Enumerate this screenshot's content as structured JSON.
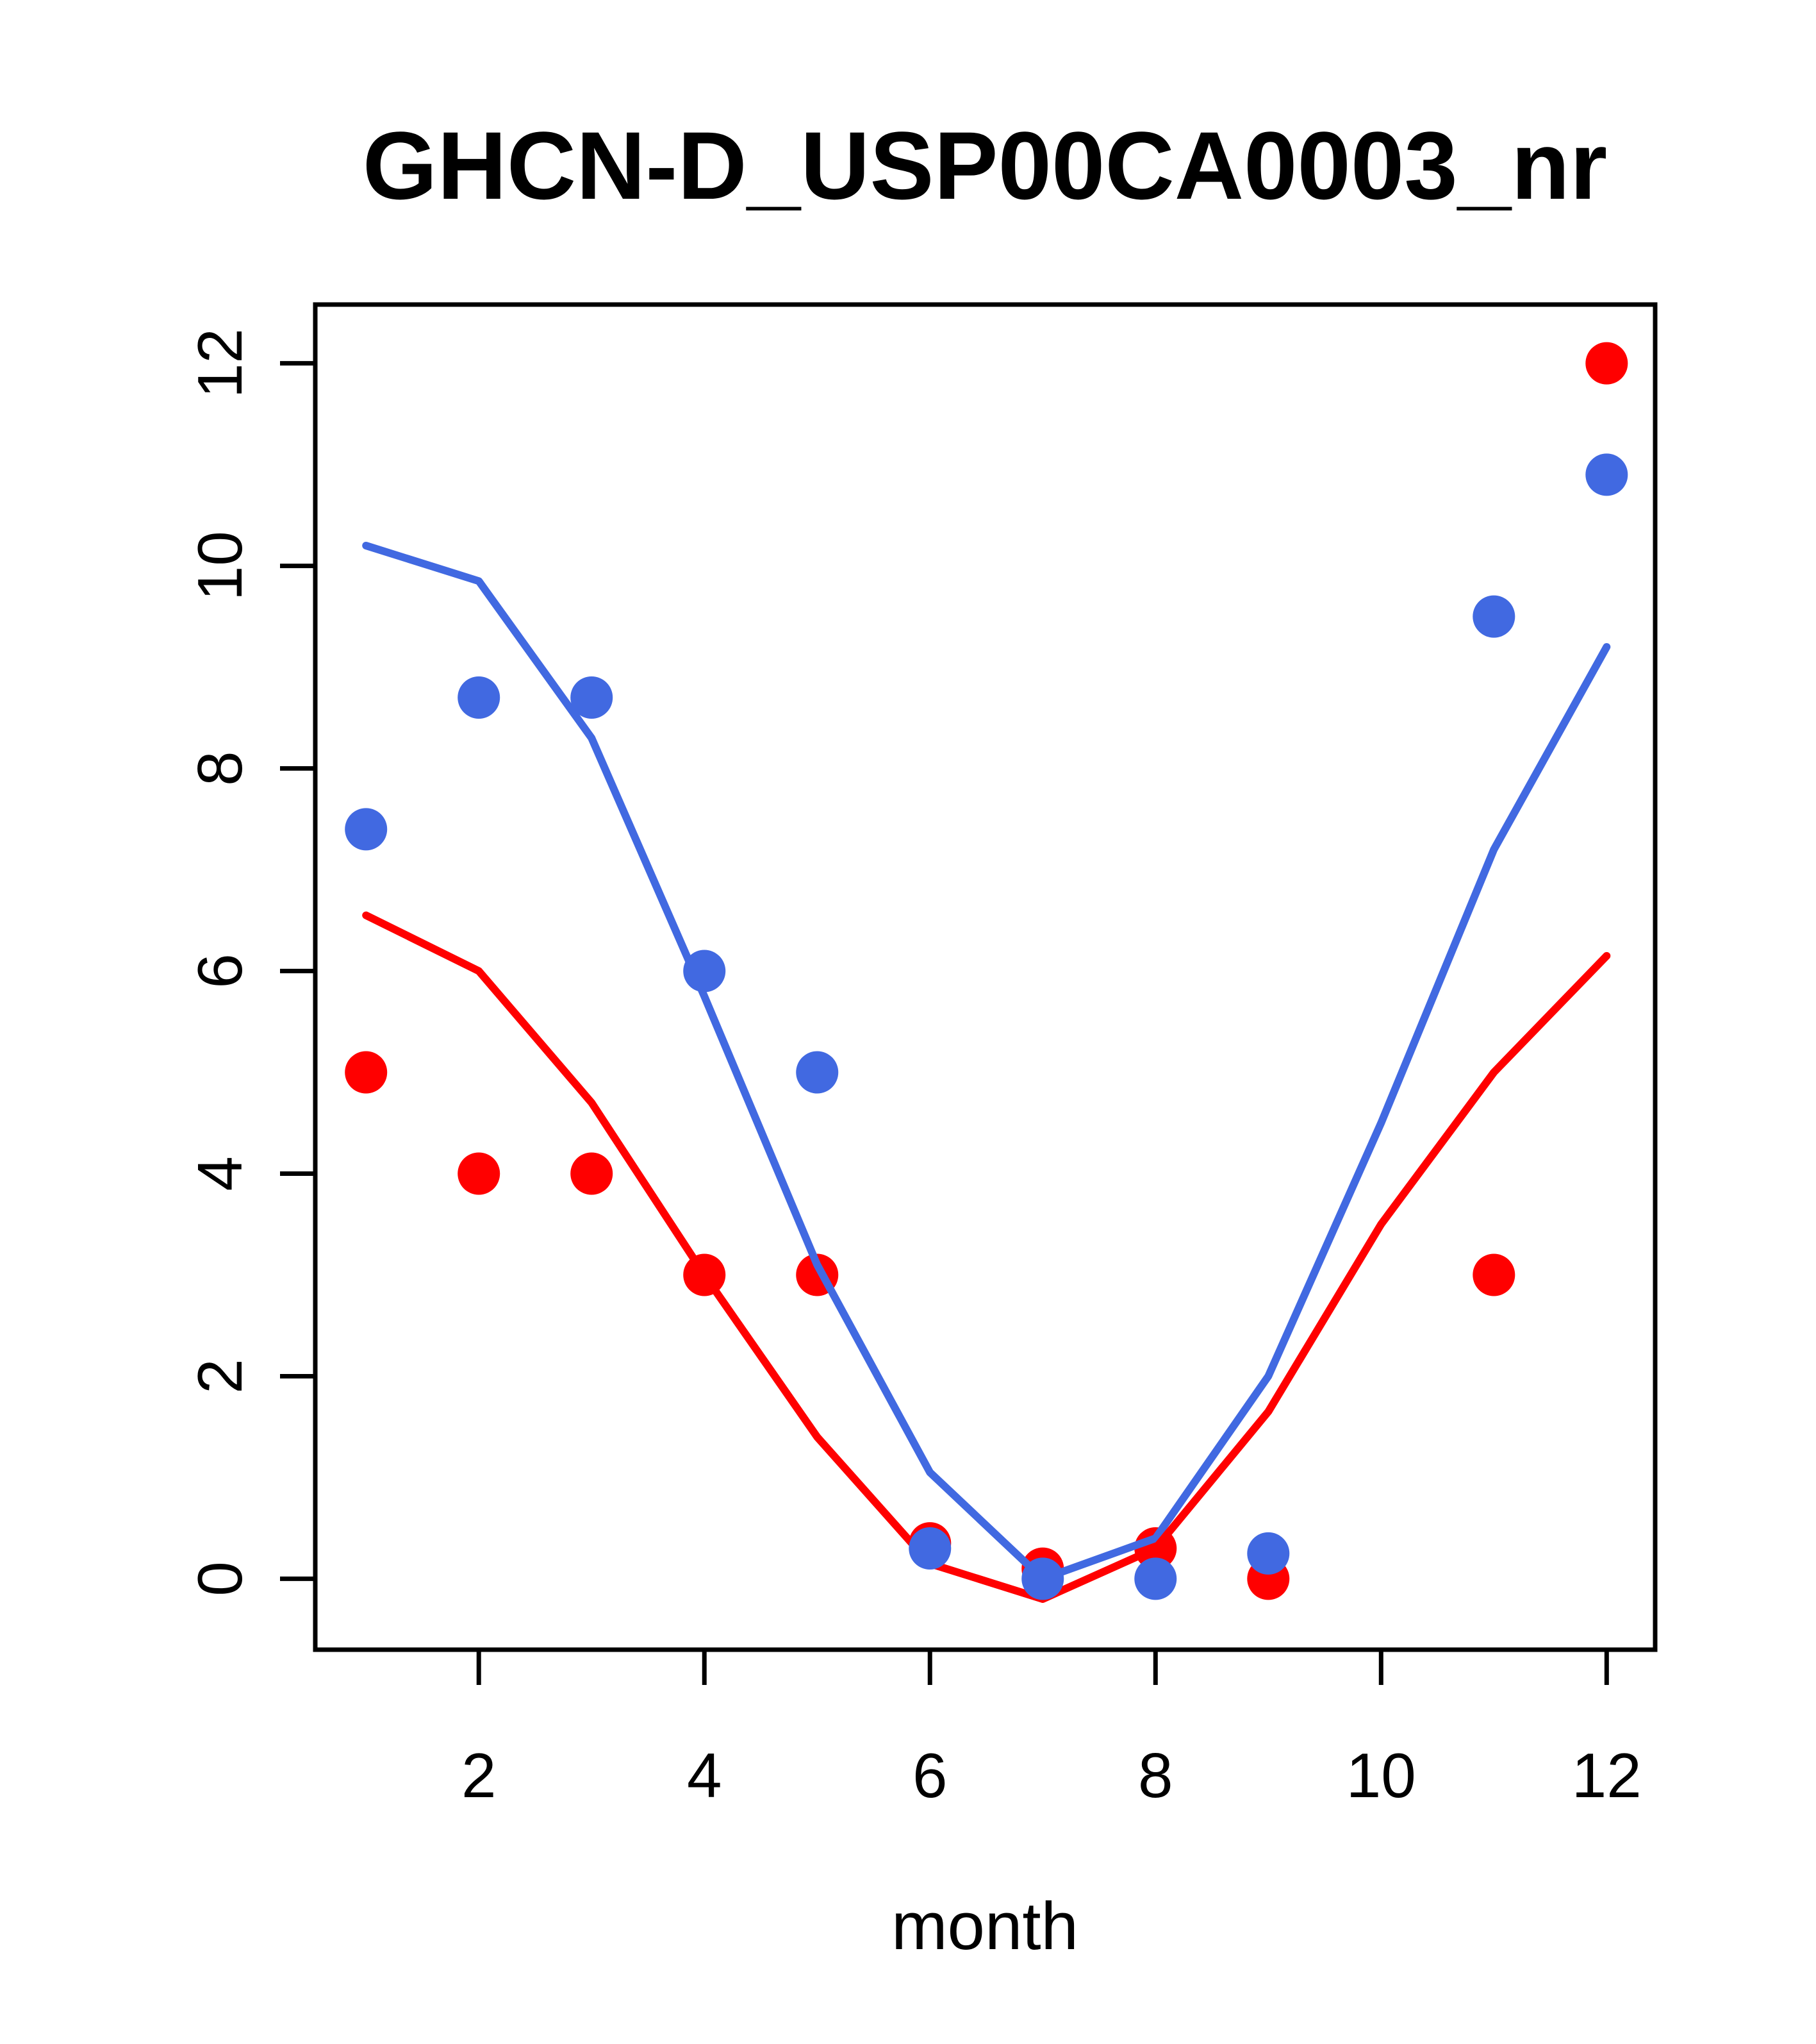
{
  "title": "GHCN-D_USP00CA0003_nr",
  "chart_data": {
    "type": "line",
    "title": "GHCN-D_USP00CA0003_nr",
    "xlabel": "month",
    "ylabel": "",
    "x": [
      1,
      2,
      3,
      4,
      5,
      6,
      7,
      8,
      9,
      10,
      11,
      12
    ],
    "x_ticks": [
      2,
      4,
      6,
      8,
      10,
      12
    ],
    "y_ticks": [
      0,
      2,
      4,
      6,
      8,
      10,
      12
    ],
    "xlim": [
      0.55,
      12.43
    ],
    "ylim": [
      -0.7,
      12.58
    ],
    "grid": false,
    "legend": "none",
    "colors": {
      "blue": "#4169E1",
      "red": "#FF0000",
      "axis": "#000000"
    },
    "series": [
      {
        "name": "red-points",
        "type": "scatter",
        "color": "#FF0000",
        "values": [
          5.0,
          4.0,
          4.0,
          3.0,
          3.0,
          0.35,
          0.1,
          0.3,
          0.0,
          null,
          3.0,
          12.0
        ]
      },
      {
        "name": "blue-line",
        "type": "line",
        "color": "#4169E1",
        "values": [
          10.2,
          9.85,
          8.3,
          5.75,
          3.1,
          1.05,
          0.0,
          0.4,
          2.0,
          4.5,
          7.2,
          9.2
        ]
      },
      {
        "name": "red-line",
        "type": "line",
        "color": "#FF0000",
        "values": [
          6.55,
          6.0,
          4.7,
          3.0,
          1.4,
          0.15,
          -0.2,
          0.3,
          1.65,
          3.5,
          5.0,
          6.15
        ]
      },
      {
        "name": "blue-points",
        "type": "scatter",
        "color": "#4169E1",
        "values": [
          7.4,
          8.7,
          8.7,
          6.0,
          5.0,
          0.3,
          0.0,
          0.0,
          0.25,
          null,
          9.5,
          10.9
        ]
      }
    ]
  }
}
